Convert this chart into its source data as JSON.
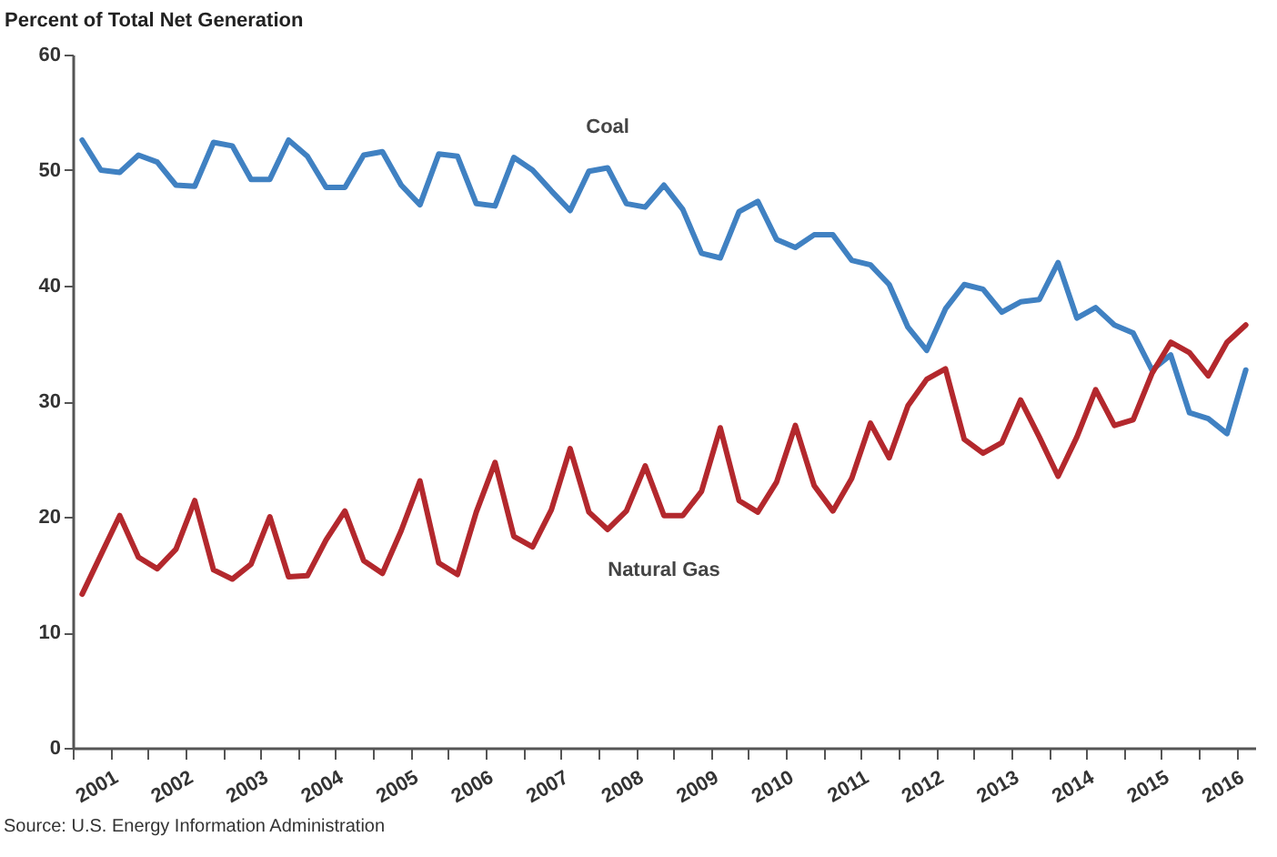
{
  "chart_data": {
    "type": "line",
    "ylabel": "Percent of Total Net Generation",
    "annotations": [
      "Source: U.S. Energy Information Administration"
    ],
    "x": [
      2001.125,
      2001.375,
      2001.625,
      2001.875,
      2002.125,
      2002.375,
      2002.625,
      2002.875,
      2003.125,
      2003.375,
      2003.625,
      2003.875,
      2004.125,
      2004.375,
      2004.625,
      2004.875,
      2005.125,
      2005.375,
      2005.625,
      2005.875,
      2006.125,
      2006.375,
      2006.625,
      2006.875,
      2007.125,
      2007.375,
      2007.625,
      2007.875,
      2008.125,
      2008.375,
      2008.625,
      2008.875,
      2009.125,
      2009.375,
      2009.625,
      2009.875,
      2010.125,
      2010.375,
      2010.625,
      2010.875,
      2011.125,
      2011.375,
      2011.625,
      2011.875,
      2012.125,
      2012.375,
      2012.625,
      2012.875,
      2013.125,
      2013.375,
      2013.625,
      2013.875,
      2014.125,
      2014.375,
      2014.625,
      2014.875,
      2015.125,
      2015.375,
      2015.625,
      2015.875,
      2016.125,
      2016.375,
      2016.625
    ],
    "series": [
      {
        "name": "Coal",
        "color": "#4081c2",
        "values": [
          52.6,
          50.0,
          49.8,
          51.3,
          50.7,
          48.7,
          48.6,
          52.4,
          52.1,
          49.2,
          49.2,
          52.6,
          51.2,
          48.5,
          48.5,
          51.3,
          51.6,
          48.7,
          47.0,
          51.4,
          51.2,
          47.1,
          46.9,
          51.1,
          50.0,
          48.2,
          46.5,
          49.9,
          50.2,
          47.1,
          46.8,
          48.7,
          46.6,
          42.8,
          42.4,
          46.4,
          47.3,
          44.0,
          43.3,
          44.4,
          44.4,
          42.2,
          41.8,
          40.1,
          36.4,
          34.4,
          38.0,
          40.1,
          39.7,
          37.7,
          38.6,
          38.8,
          42.0,
          37.2,
          38.1,
          36.6,
          35.9,
          32.7,
          34.0,
          29.0,
          28.5,
          27.2,
          32.7
        ]
      },
      {
        "name": "Natural Gas",
        "color": "#b3282d",
        "values": [
          13.3,
          16.7,
          20.1,
          16.5,
          15.5,
          17.2,
          21.4,
          15.4,
          14.6,
          15.9,
          20.0,
          14.8,
          14.9,
          18.0,
          20.5,
          16.2,
          15.1,
          18.8,
          23.1,
          16.0,
          15.0,
          20.4,
          24.7,
          18.3,
          17.4,
          20.6,
          25.9,
          20.4,
          18.9,
          20.5,
          24.4,
          20.1,
          20.1,
          22.2,
          27.7,
          21.4,
          20.4,
          23.0,
          27.9,
          22.7,
          20.5,
          23.3,
          28.1,
          25.1,
          29.6,
          31.9,
          32.8,
          26.7,
          25.5,
          26.4,
          30.1,
          26.9,
          23.5,
          26.9,
          31.0,
          27.9,
          28.4,
          32.4,
          35.1,
          34.2,
          32.2,
          35.1,
          36.6
        ]
      }
    ],
    "xlim": [
      2001,
      2016.75
    ],
    "xticks": [
      {
        "value": 2001,
        "label": null
      },
      {
        "value": 2001.5,
        "label": "2001"
      },
      {
        "value": 2002,
        "label": null
      },
      {
        "value": 2002.5,
        "label": "2002"
      },
      {
        "value": 2003,
        "label": null
      },
      {
        "value": 2003.5,
        "label": "2003"
      },
      {
        "value": 2004,
        "label": null
      },
      {
        "value": 2004.5,
        "label": "2004"
      },
      {
        "value": 2005,
        "label": null
      },
      {
        "value": 2005.5,
        "label": "2005"
      },
      {
        "value": 2006,
        "label": null
      },
      {
        "value": 2006.5,
        "label": "2006"
      },
      {
        "value": 2007,
        "label": null
      },
      {
        "value": 2007.5,
        "label": "2007"
      },
      {
        "value": 2008,
        "label": null
      },
      {
        "value": 2008.5,
        "label": "2008"
      },
      {
        "value": 2009,
        "label": null
      },
      {
        "value": 2009.5,
        "label": "2009"
      },
      {
        "value": 2010,
        "label": null
      },
      {
        "value": 2010.5,
        "label": "2010"
      },
      {
        "value": 2011,
        "label": null
      },
      {
        "value": 2011.5,
        "label": "2011"
      },
      {
        "value": 2012,
        "label": null
      },
      {
        "value": 2012.5,
        "label": "2012"
      },
      {
        "value": 2013,
        "label": null
      },
      {
        "value": 2013.5,
        "label": "2013"
      },
      {
        "value": 2014,
        "label": null
      },
      {
        "value": 2014.5,
        "label": "2014"
      },
      {
        "value": 2015,
        "label": null
      },
      {
        "value": 2015.5,
        "label": "2015"
      },
      {
        "value": 2016,
        "label": null
      },
      {
        "value": 2016.5,
        "label": "2016"
      }
    ],
    "ylim": [
      0,
      60
    ],
    "yticks": [
      0,
      10,
      20,
      30,
      40,
      50,
      60
    ],
    "grid": false,
    "legend": false,
    "marker": "none",
    "line_style": "solid"
  }
}
